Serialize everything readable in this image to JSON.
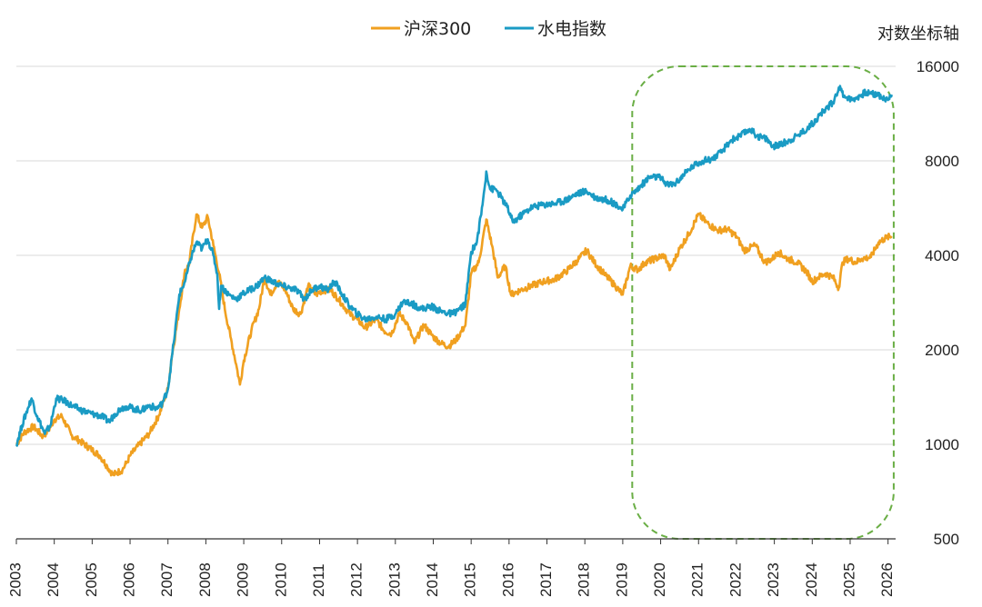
{
  "chart_data": {
    "type": "line",
    "axis_note": "对数坐标轴",
    "y_scale": "log",
    "ylim": [
      500,
      16000
    ],
    "y_ticks": [
      500,
      1000,
      2000,
      4000,
      8000,
      16000
    ],
    "y_tick_labels": [
      "500",
      "1000",
      "2000",
      "4000",
      "8000",
      "16000"
    ],
    "xlim": [
      2003.0,
      2026.2
    ],
    "x_ticks": [
      2003,
      2004,
      2005,
      2006,
      2007,
      2008,
      2009,
      2010,
      2011,
      2012,
      2013,
      2014,
      2015,
      2016,
      2017,
      2018,
      2019,
      2020,
      2021,
      2022,
      2023,
      2024,
      2025,
      2026
    ],
    "x_tick_labels": [
      "2003",
      "2004",
      "2005",
      "2006",
      "2007",
      "2008",
      "2009",
      "2010",
      "2011",
      "2012",
      "2013",
      "2014",
      "2015",
      "2016",
      "2017",
      "2018",
      "2019",
      "2020",
      "2021",
      "2022",
      "2023",
      "2024",
      "2025",
      "2026"
    ],
    "grid": "horizontal",
    "legend_position": "top-center",
    "highlight_region": {
      "x_range": [
        2019.25,
        2026.15
      ],
      "y_range": [
        500,
        16000
      ],
      "style": "dashed rounded rectangle",
      "color": "#6aae45"
    },
    "series": [
      {
        "name": "沪深300",
        "color": "#f0a020",
        "points": [
          [
            2003.0,
            1000
          ],
          [
            2003.2,
            1090
          ],
          [
            2003.45,
            1140
          ],
          [
            2003.7,
            1060
          ],
          [
            2003.85,
            1110
          ],
          [
            2004.0,
            1200
          ],
          [
            2004.2,
            1230
          ],
          [
            2004.45,
            1070
          ],
          [
            2004.7,
            1020
          ],
          [
            2005.0,
            960
          ],
          [
            2005.2,
            920
          ],
          [
            2005.4,
            850
          ],
          [
            2005.55,
            800
          ],
          [
            2005.8,
            830
          ],
          [
            2005.9,
            870
          ],
          [
            2006.0,
            920
          ],
          [
            2006.25,
            1000
          ],
          [
            2006.5,
            1080
          ],
          [
            2006.75,
            1230
          ],
          [
            2007.0,
            1500
          ],
          [
            2007.1,
            1900
          ],
          [
            2007.3,
            2700
          ],
          [
            2007.45,
            3600
          ],
          [
            2007.55,
            3700
          ],
          [
            2007.75,
            5400
          ],
          [
            2007.9,
            4900
          ],
          [
            2008.05,
            5300
          ],
          [
            2008.2,
            4300
          ],
          [
            2008.35,
            3500
          ],
          [
            2008.5,
            2700
          ],
          [
            2008.65,
            2200
          ],
          [
            2008.8,
            1800
          ],
          [
            2008.9,
            1550
          ],
          [
            2009.0,
            1850
          ],
          [
            2009.2,
            2300
          ],
          [
            2009.4,
            2700
          ],
          [
            2009.55,
            3400
          ],
          [
            2009.7,
            3000
          ],
          [
            2009.9,
            3300
          ],
          [
            2010.1,
            3100
          ],
          [
            2010.3,
            2700
          ],
          [
            2010.5,
            2600
          ],
          [
            2010.7,
            3200
          ],
          [
            2010.9,
            3000
          ],
          [
            2011.1,
            3100
          ],
          [
            2011.3,
            3100
          ],
          [
            2011.5,
            2900
          ],
          [
            2011.8,
            2600
          ],
          [
            2012.0,
            2500
          ],
          [
            2012.2,
            2350
          ],
          [
            2012.5,
            2500
          ],
          [
            2012.7,
            2300
          ],
          [
            2012.9,
            2250
          ],
          [
            2013.1,
            2600
          ],
          [
            2013.3,
            2450
          ],
          [
            2013.5,
            2100
          ],
          [
            2013.75,
            2400
          ],
          [
            2014.0,
            2200
          ],
          [
            2014.2,
            2100
          ],
          [
            2014.4,
            2050
          ],
          [
            2014.6,
            2150
          ],
          [
            2014.85,
            2400
          ],
          [
            2015.0,
            3500
          ],
          [
            2015.2,
            3800
          ],
          [
            2015.4,
            5200
          ],
          [
            2015.55,
            4300
          ],
          [
            2015.7,
            3400
          ],
          [
            2015.9,
            3700
          ],
          [
            2016.05,
            3000
          ],
          [
            2016.3,
            3100
          ],
          [
            2016.6,
            3200
          ],
          [
            2016.9,
            3300
          ],
          [
            2017.2,
            3350
          ],
          [
            2017.5,
            3550
          ],
          [
            2017.8,
            3850
          ],
          [
            2018.05,
            4150
          ],
          [
            2018.25,
            3800
          ],
          [
            2018.5,
            3500
          ],
          [
            2018.8,
            3200
          ],
          [
            2019.0,
            3000
          ],
          [
            2019.2,
            3700
          ],
          [
            2019.4,
            3600
          ],
          [
            2019.6,
            3800
          ],
          [
            2019.85,
            3900
          ],
          [
            2020.1,
            4000
          ],
          [
            2020.25,
            3600
          ],
          [
            2020.5,
            4200
          ],
          [
            2020.75,
            4700
          ],
          [
            2021.0,
            5400
          ],
          [
            2021.2,
            5100
          ],
          [
            2021.5,
            4800
          ],
          [
            2021.75,
            4850
          ],
          [
            2022.0,
            4600
          ],
          [
            2022.2,
            4150
          ],
          [
            2022.5,
            4300
          ],
          [
            2022.75,
            3800
          ],
          [
            2022.95,
            3900
          ],
          [
            2023.1,
            4100
          ],
          [
            2023.35,
            3900
          ],
          [
            2023.6,
            3800
          ],
          [
            2023.85,
            3550
          ],
          [
            2024.0,
            3300
          ],
          [
            2024.15,
            3400
          ],
          [
            2024.35,
            3500
          ],
          [
            2024.55,
            3400
          ],
          [
            2024.7,
            3150
          ],
          [
            2024.8,
            3800
          ],
          [
            2024.95,
            3900
          ],
          [
            2025.15,
            3800
          ],
          [
            2025.3,
            3900
          ],
          [
            2025.55,
            3950
          ],
          [
            2025.75,
            4400
          ],
          [
            2025.95,
            4550
          ],
          [
            2026.1,
            4600
          ]
        ]
      },
      {
        "name": "水电指数",
        "color": "#1a9bc4",
        "points": [
          [
            2003.0,
            1000
          ],
          [
            2003.15,
            1150
          ],
          [
            2003.3,
            1300
          ],
          [
            2003.4,
            1400
          ],
          [
            2003.55,
            1230
          ],
          [
            2003.75,
            1080
          ],
          [
            2003.9,
            1150
          ],
          [
            2004.05,
            1400
          ],
          [
            2004.25,
            1380
          ],
          [
            2004.5,
            1320
          ],
          [
            2004.75,
            1280
          ],
          [
            2005.0,
            1250
          ],
          [
            2005.25,
            1230
          ],
          [
            2005.45,
            1180
          ],
          [
            2005.6,
            1250
          ],
          [
            2005.75,
            1300
          ],
          [
            2005.9,
            1320
          ],
          [
            2006.1,
            1300
          ],
          [
            2006.3,
            1280
          ],
          [
            2006.5,
            1330
          ],
          [
            2006.7,
            1300
          ],
          [
            2006.85,
            1350
          ],
          [
            2007.0,
            1500
          ],
          [
            2007.15,
            2100
          ],
          [
            2007.3,
            3000
          ],
          [
            2007.45,
            3300
          ],
          [
            2007.6,
            3900
          ],
          [
            2007.75,
            4400
          ],
          [
            2007.9,
            4200
          ],
          [
            2008.05,
            4500
          ],
          [
            2008.2,
            4000
          ],
          [
            2008.3,
            3500
          ],
          [
            2008.35,
            2700
          ],
          [
            2008.4,
            3200
          ],
          [
            2008.6,
            3000
          ],
          [
            2008.8,
            2900
          ],
          [
            2008.95,
            3000
          ],
          [
            2009.15,
            3100
          ],
          [
            2009.35,
            3200
          ],
          [
            2009.55,
            3400
          ],
          [
            2009.75,
            3300
          ],
          [
            2010.0,
            3200
          ],
          [
            2010.2,
            3150
          ],
          [
            2010.4,
            3100
          ],
          [
            2010.6,
            2900
          ],
          [
            2010.8,
            3100
          ],
          [
            2011.0,
            3200
          ],
          [
            2011.2,
            3100
          ],
          [
            2011.4,
            3300
          ],
          [
            2011.6,
            3000
          ],
          [
            2011.8,
            2750
          ],
          [
            2012.0,
            2600
          ],
          [
            2012.2,
            2500
          ],
          [
            2012.5,
            2550
          ],
          [
            2012.75,
            2500
          ],
          [
            2013.0,
            2600
          ],
          [
            2013.2,
            2850
          ],
          [
            2013.45,
            2800
          ],
          [
            2013.7,
            2700
          ],
          [
            2013.95,
            2750
          ],
          [
            2014.2,
            2650
          ],
          [
            2014.5,
            2600
          ],
          [
            2014.7,
            2700
          ],
          [
            2014.85,
            2800
          ],
          [
            2015.0,
            4100
          ],
          [
            2015.15,
            4400
          ],
          [
            2015.3,
            5800
          ],
          [
            2015.4,
            7400
          ],
          [
            2015.5,
            6500
          ],
          [
            2015.65,
            6500
          ],
          [
            2015.8,
            6100
          ],
          [
            2015.95,
            5700
          ],
          [
            2016.1,
            5100
          ],
          [
            2016.35,
            5400
          ],
          [
            2016.6,
            5700
          ],
          [
            2016.9,
            5800
          ],
          [
            2017.2,
            5850
          ],
          [
            2017.5,
            6000
          ],
          [
            2017.8,
            6300
          ],
          [
            2018.05,
            6400
          ],
          [
            2018.3,
            6100
          ],
          [
            2018.6,
            6000
          ],
          [
            2018.85,
            5800
          ],
          [
            2019.0,
            5600
          ],
          [
            2019.2,
            6200
          ],
          [
            2019.45,
            6600
          ],
          [
            2019.7,
            7100
          ],
          [
            2019.95,
            7100
          ],
          [
            2020.2,
            6700
          ],
          [
            2020.4,
            6800
          ],
          [
            2020.6,
            7200
          ],
          [
            2020.85,
            7700
          ],
          [
            2021.1,
            8000
          ],
          [
            2021.35,
            8100
          ],
          [
            2021.6,
            8500
          ],
          [
            2021.85,
            9300
          ],
          [
            2022.1,
            9600
          ],
          [
            2022.35,
            10100
          ],
          [
            2022.55,
            9600
          ],
          [
            2022.8,
            9400
          ],
          [
            2022.95,
            8900
          ],
          [
            2023.15,
            9000
          ],
          [
            2023.4,
            9300
          ],
          [
            2023.65,
            9700
          ],
          [
            2023.9,
            10200
          ],
          [
            2024.15,
            11000
          ],
          [
            2024.35,
            11700
          ],
          [
            2024.55,
            12300
          ],
          [
            2024.7,
            13700
          ],
          [
            2024.85,
            12900
          ],
          [
            2025.05,
            12500
          ],
          [
            2025.2,
            12800
          ],
          [
            2025.4,
            13200
          ],
          [
            2025.55,
            13100
          ],
          [
            2025.75,
            13000
          ],
          [
            2025.9,
            12600
          ],
          [
            2026.0,
            12500
          ],
          [
            2026.1,
            13000
          ]
        ]
      }
    ]
  }
}
